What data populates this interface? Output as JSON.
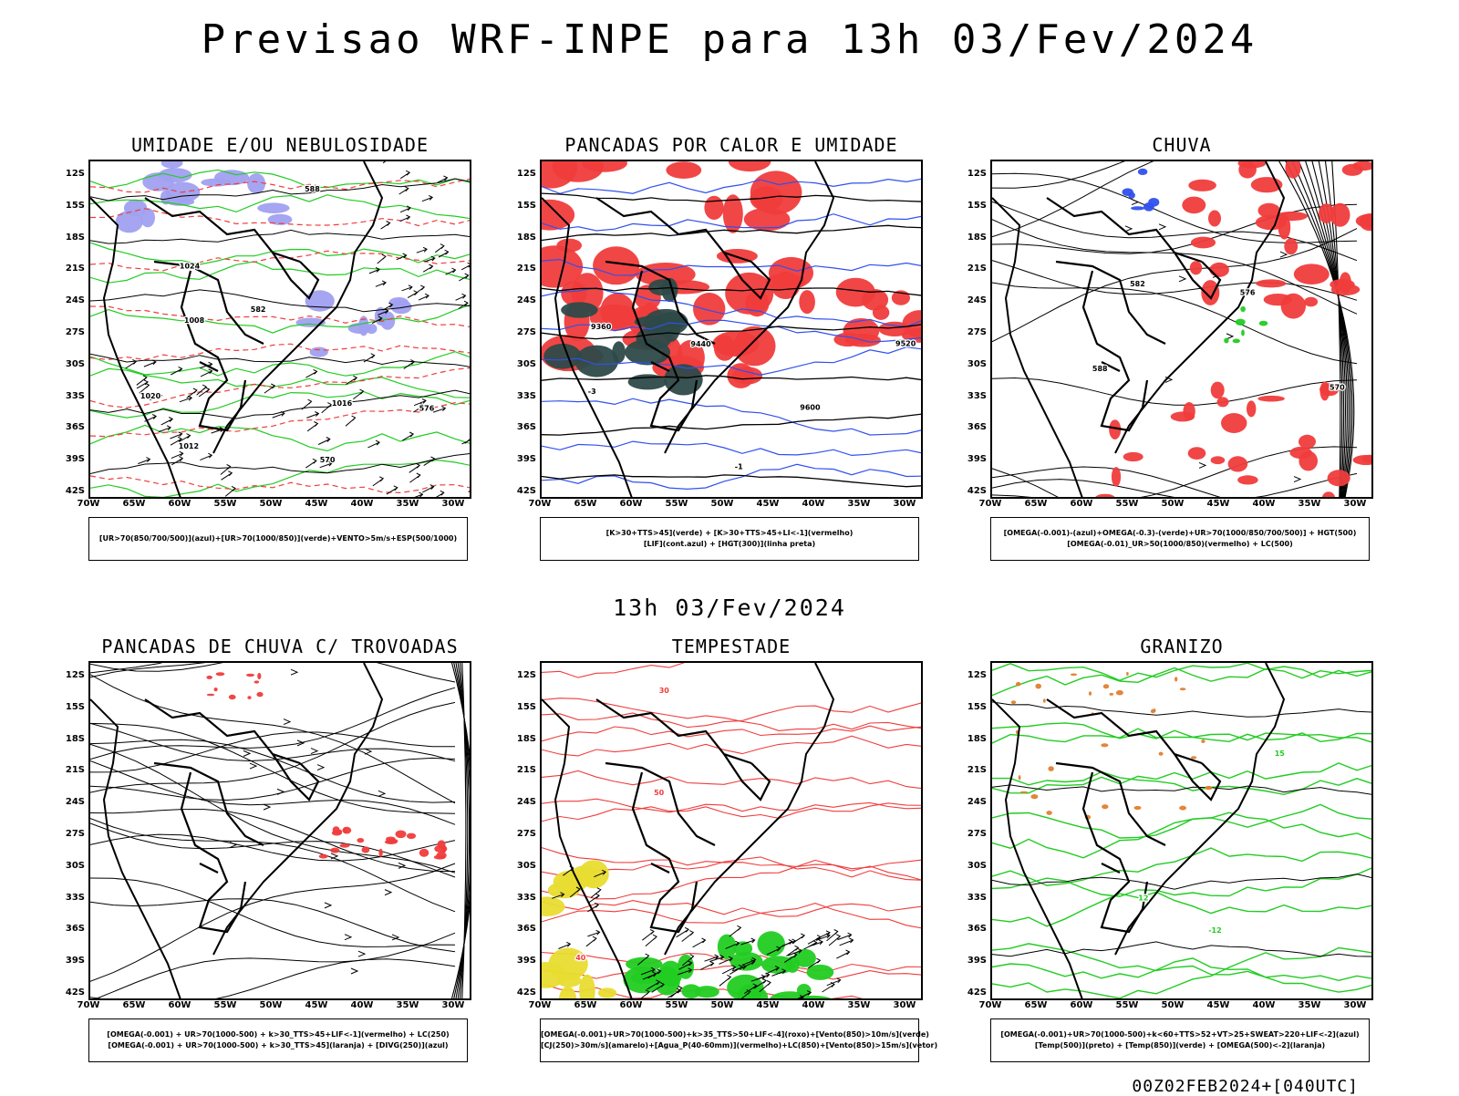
{
  "main_title": "Previsao WRF-INPE  para 13h 03/Fev/2024",
  "mid_title": "13h 03/Fev/2024",
  "footer": "00Z02FEB2024+[040UTC]",
  "lat_labels": [
    "12S",
    "15S",
    "18S",
    "21S",
    "24S",
    "27S",
    "30S",
    "33S",
    "36S",
    "39S",
    "42S"
  ],
  "lon_labels": [
    "70W",
    "65W",
    "60W",
    "55W",
    "50W",
    "45W",
    "40W",
    "35W",
    "30W"
  ],
  "colors": {
    "red": "#f03c3c",
    "green": "#22cc22",
    "blue": "#3050ee",
    "lavender": "#a0a0f0",
    "teal": "#2d4a48",
    "yellow": "#e8dc30",
    "orange": "#e08030"
  },
  "panels": [
    {
      "title": "UMIDADE E/OU NEBULOSIDADE",
      "legend": [
        "[UR>70(850/700/500)](azul)+[UR>70(1000/850)](verde)+VENTO>5m/s+ESP(500/1000)"
      ],
      "contour_labels": [
        "1012",
        "1016",
        "1020",
        "1024",
        "570",
        "576",
        "582",
        "588",
        "1008"
      ]
    },
    {
      "title": "PANCADAS POR CALOR E UMIDADE",
      "legend": [
        "[K>30+TTS>45](verde) + [K>30+TTS>45+LI<-1](vermelho)",
        "[LIF](cont.azul) + [HGT(300)](linha preta)"
      ],
      "contour_labels": [
        "9600",
        "9520",
        "9440",
        "9360",
        "-3",
        "-1"
      ]
    },
    {
      "title": "CHUVA",
      "legend": [
        "[OMEGA(-0.001)-(azul)+OMEGA(-0.3)-(verde)+UR>70(1000/850/700/500)] + HGT(500)",
        "[OMEGA(-0.01)_UR>50(1000/850)(vermelho) + LC(500)"
      ],
      "contour_labels": [
        "588",
        "582",
        "576",
        "570"
      ]
    },
    {
      "title": "PANCADAS DE CHUVA C/ TROVOADAS",
      "legend": [
        "[OMEGA(-0.001) + UR>70(1000-500) + k>30_TTS>45+LIF<-1](vermelho) + LC(250)",
        "[OMEGA(-0.001) + UR>70(1000-500) + k>30_TTS>45](laranja) + [DIVG(250)](azul)"
      ],
      "contour_labels": []
    },
    {
      "title": "TEMPESTADE",
      "legend": [
        "[OMEGA(-0.001)+UR>70(1000-500)+k>35_TTS>50+LIF<-4](roxo)+[Vento(850)>10m/s](verde)",
        "[CJ(250)>30m/s](amarelo)+[Agua_P(40-60mm)](vermelho)+LC(850)+[Vento(850)>15m/s](vetor)"
      ],
      "contour_labels": [
        "50",
        "40",
        "30"
      ]
    },
    {
      "title": "GRANIZO",
      "legend": [
        "[OMEGA(-0.001)+UR>70(1000-500)+k<60+TTS>52+VT>25+SWEAT>220+LIF<-2](azul)",
        "[Temp(500)](preto) + [Temp(850)](verde) + [OMEGA(500)<-2](laranja)"
      ],
      "contour_labels": [
        "15",
        "12",
        "-12"
      ]
    }
  ]
}
